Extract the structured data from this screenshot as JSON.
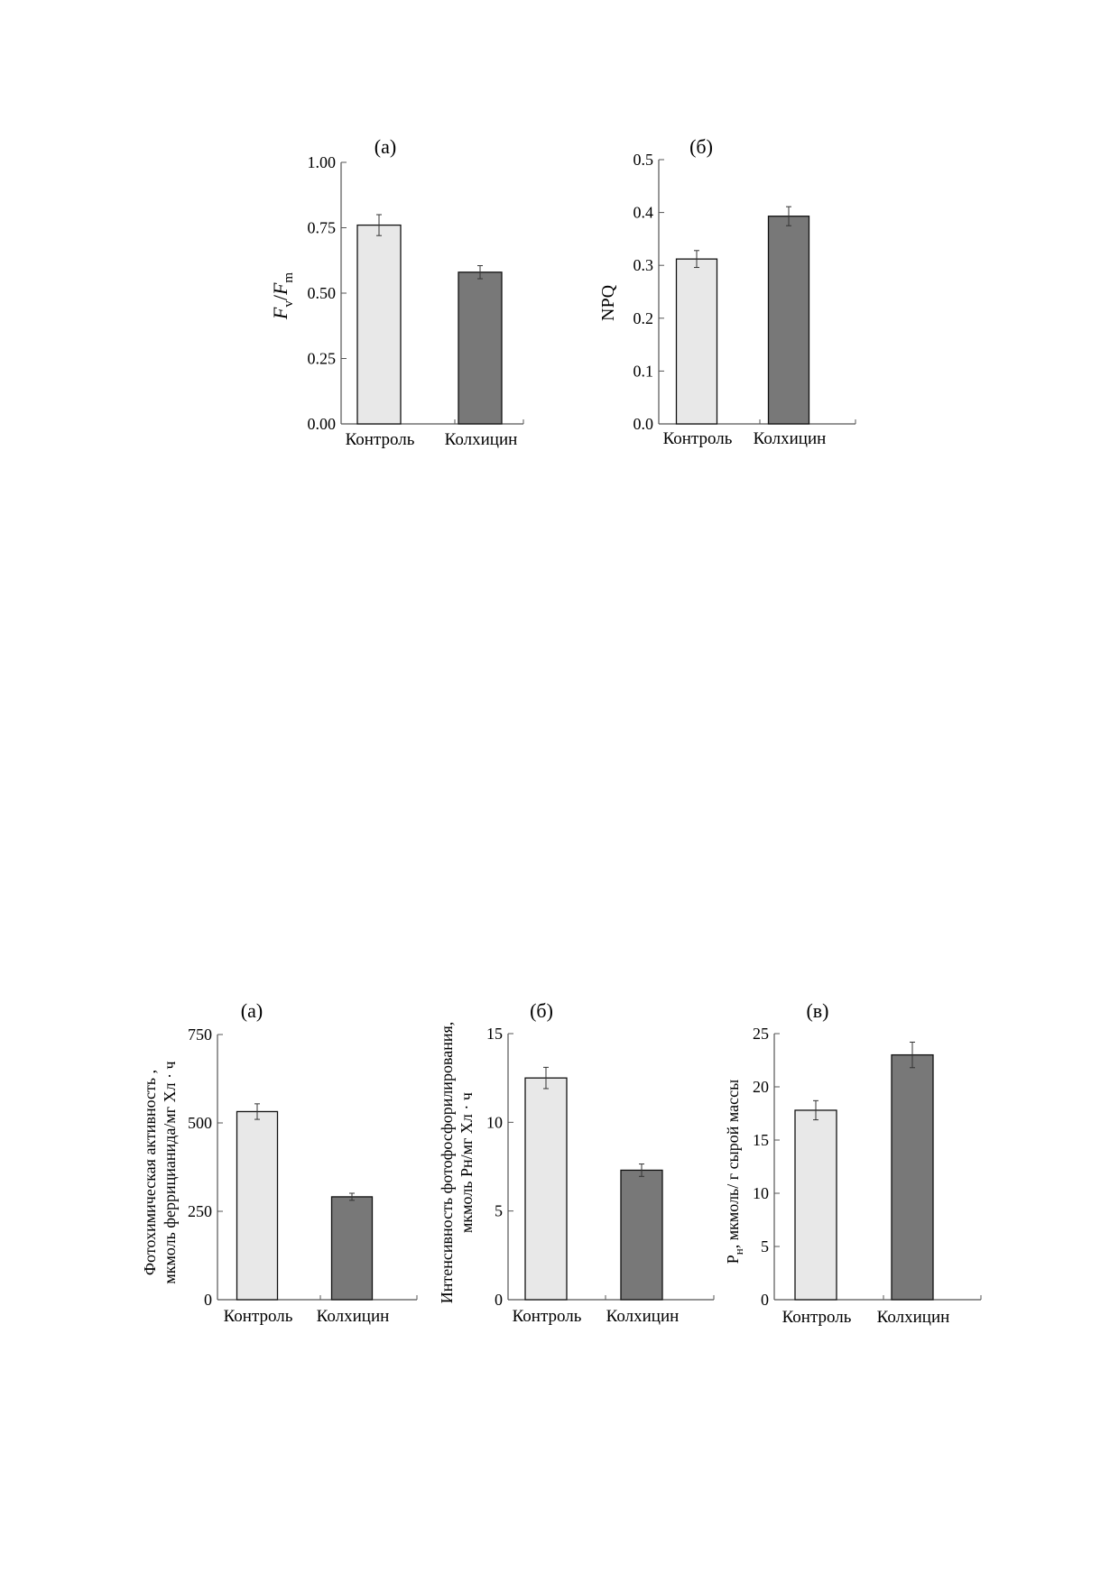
{
  "chart_data": [
    {
      "type": "bar",
      "title": "(а)",
      "categories": [
        "Контроль",
        "Колхицин"
      ],
      "values": [
        0.76,
        0.58
      ],
      "errors": [
        0.04,
        0.025
      ],
      "ylim": [
        0,
        1.0
      ],
      "yticks": [
        "0.00",
        "0.25",
        "0.50",
        "0.75",
        "1.00"
      ],
      "ytick_values": [
        0,
        0.25,
        0.5,
        0.75,
        1.0
      ],
      "ylabel": {
        "part1": "F",
        "sub1": "v",
        "sep": "/",
        "part2": "F",
        "sub2": "m"
      },
      "colors": [
        "#e8e8e8",
        "#787878"
      ]
    },
    {
      "type": "bar",
      "title": "(б)",
      "categories": [
        "Контроль",
        "Колхицин"
      ],
      "values": [
        0.312,
        0.393
      ],
      "errors": [
        0.016,
        0.018
      ],
      "ylim": [
        0,
        0.5
      ],
      "yticks": [
        "0.0",
        "0.1",
        "0.2",
        "0.3",
        "0.4",
        "0.5"
      ],
      "ytick_values": [
        0,
        0.1,
        0.2,
        0.3,
        0.4,
        0.5
      ],
      "ylabel": {
        "text": "NPQ"
      },
      "colors": [
        "#e8e8e8",
        "#787878"
      ]
    },
    {
      "type": "bar",
      "title": "(а)",
      "categories": [
        "Контроль",
        "Колхицин"
      ],
      "values": [
        532,
        291
      ],
      "errors": [
        22,
        10
      ],
      "ylim": [
        0,
        750
      ],
      "yticks": [
        "0",
        "250",
        "500",
        "750"
      ],
      "ytick_values": [
        0,
        250,
        500,
        750
      ],
      "ylabel": {
        "line1": "Фотохимическая активность ,",
        "line2": "мкмоль феррицианида/мг Хл · ч"
      },
      "colors": [
        "#e8e8e8",
        "#787878"
      ]
    },
    {
      "type": "bar",
      "title": "(б)",
      "categories": [
        "Контроль",
        "Колхицин"
      ],
      "values": [
        12.5,
        7.3
      ],
      "errors": [
        0.6,
        0.35
      ],
      "ylim": [
        0,
        15
      ],
      "yticks": [
        "0",
        "5",
        "10",
        "15"
      ],
      "ytick_values": [
        0,
        5,
        10,
        15
      ],
      "ylabel": {
        "line1": "Интенсивность фотофосфорилирования,",
        "line2": "мкмоль Рн/мг Хл · ч"
      },
      "colors": [
        "#e8e8e8",
        "#787878"
      ]
    },
    {
      "type": "bar",
      "title": "(в)",
      "categories": [
        "Контроль",
        "Колхицин"
      ],
      "values": [
        17.8,
        23.0
      ],
      "errors": [
        0.9,
        1.2
      ],
      "ylim": [
        0,
        25
      ],
      "yticks": [
        "0",
        "5",
        "10",
        "15",
        "20",
        "25"
      ],
      "ytick_values": [
        0,
        5,
        10,
        15,
        20,
        25
      ],
      "ylabel": {
        "main": "Р",
        "sub": "н",
        "rest": ", мкмоль/ г сырой массы"
      },
      "colors": [
        "#e8e8e8",
        "#787878"
      ]
    }
  ]
}
